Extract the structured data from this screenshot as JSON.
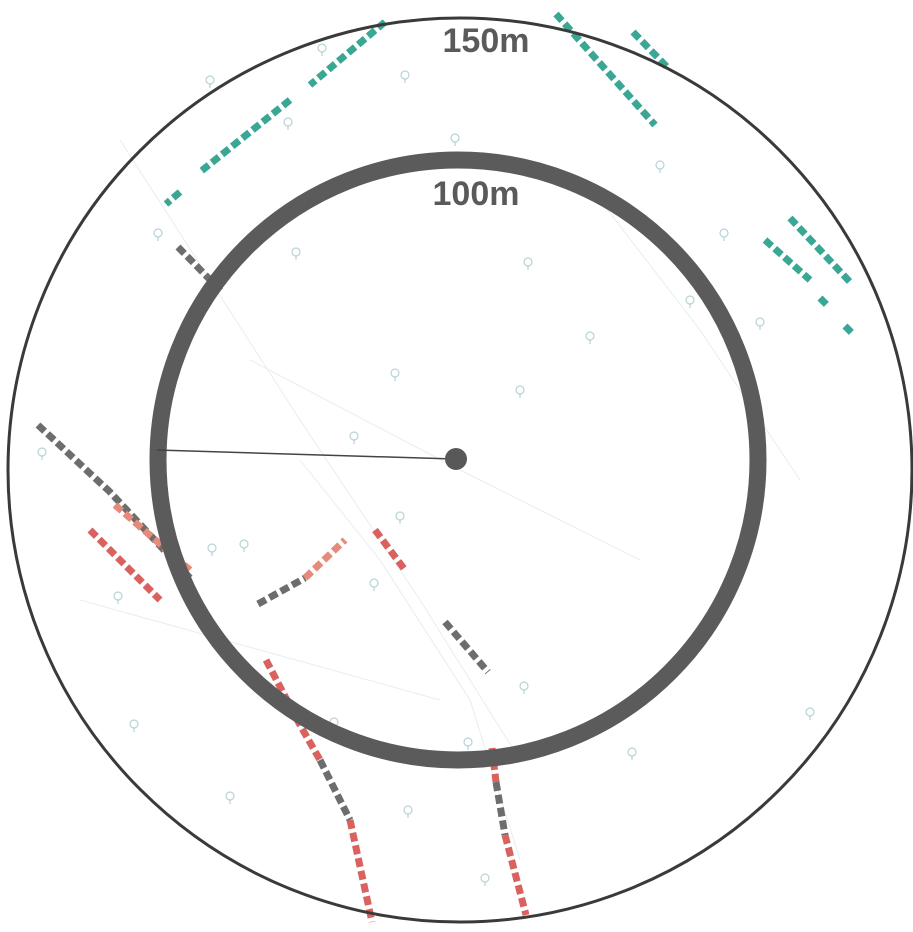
{
  "map": {
    "rings": [
      {
        "label": "150m"
      },
      {
        "label": "100m"
      }
    ],
    "colors": {
      "outer_ring": "#3a3a3a",
      "inner_ring": "#5b5b5b",
      "center": "#585858",
      "radius_line": "#444444",
      "teal": "#3aa694",
      "gray": "#6d6d6d",
      "red": "#d9625f",
      "salmon": "#e58b7b",
      "orange": "#e8a184",
      "poi": "#b8d3d6"
    },
    "trail_types": [
      "teal",
      "gray",
      "red",
      "salmon"
    ],
    "poi_icon": "map-pin-icon"
  }
}
